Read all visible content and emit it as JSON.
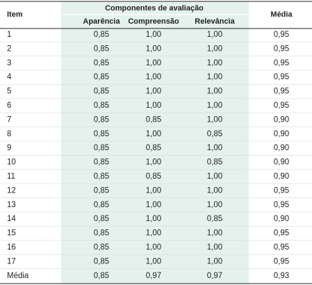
{
  "table": {
    "group_header": "Componentes de avaliação",
    "header": [
      "Item",
      "Aparência",
      "Compreensão",
      "Relevância",
      "Média"
    ],
    "rows": [
      [
        "1",
        "0,85",
        "1,00",
        "1,00",
        "0,95"
      ],
      [
        "2",
        "0,85",
        "1,00",
        "1,00",
        "0,95"
      ],
      [
        "3",
        "0,85",
        "1,00",
        "1,00",
        "0,95"
      ],
      [
        "4",
        "0,85",
        "1,00",
        "1,00",
        "0,95"
      ],
      [
        "5",
        "0,85",
        "1,00",
        "1,00",
        "0,95"
      ],
      [
        "6",
        "0,85",
        "1,00",
        "1,00",
        "0,95"
      ],
      [
        "7",
        "0,85",
        "0,85",
        "1,00",
        "0,90"
      ],
      [
        "8",
        "0,85",
        "1,00",
        "0,85",
        "0,90"
      ],
      [
        "9",
        "0,85",
        "0,85",
        "1,00",
        "0,90"
      ],
      [
        "10",
        "0,85",
        "1,00",
        "0,85",
        "0,90"
      ],
      [
        "11",
        "0,85",
        "0,85",
        "1,00",
        "0,90"
      ],
      [
        "12",
        "0,85",
        "1,00",
        "1,00",
        "0,95"
      ],
      [
        "13",
        "0,85",
        "1,00",
        "1,00",
        "0,95"
      ],
      [
        "14",
        "0,85",
        "1,00",
        "0,85",
        "0,90"
      ],
      [
        "15",
        "0,85",
        "1,00",
        "1,00",
        "0,95"
      ],
      [
        "16",
        "0,85",
        "1,00",
        "1,00",
        "0,95"
      ],
      [
        "17",
        "0,85",
        "1,00",
        "1,00",
        "0,95"
      ],
      [
        "Média",
        "0,85",
        "0,97",
        "0,97",
        "0,93"
      ]
    ]
  }
}
